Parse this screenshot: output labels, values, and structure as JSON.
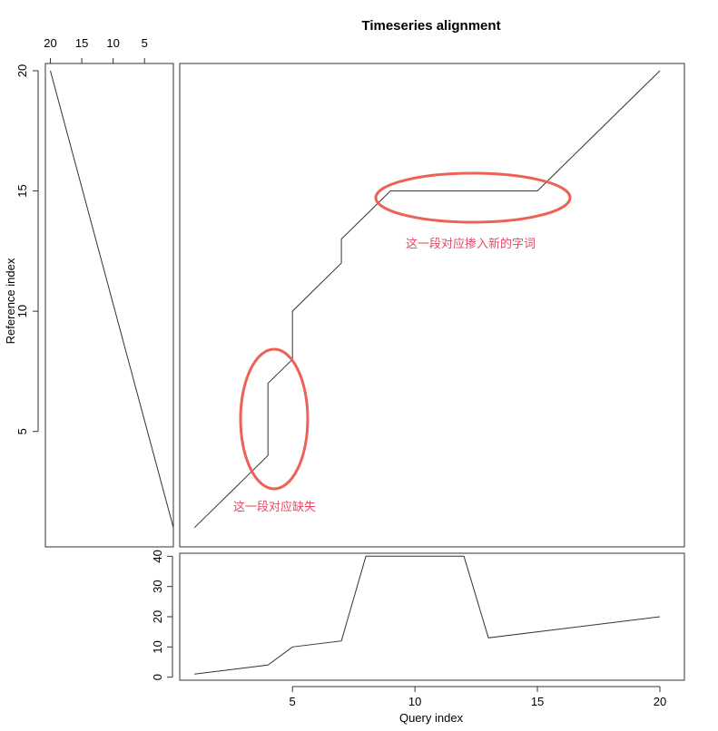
{
  "chart_data": {
    "type": "line",
    "title": "Timeseries alignment",
    "warping_path": {
      "xlabel": "Query index",
      "ylabel": "Reference index",
      "x": [
        1,
        2,
        3,
        4,
        4,
        5,
        5,
        6,
        7,
        7,
        8,
        9,
        10,
        11,
        12,
        13,
        14,
        15,
        16,
        17,
        18,
        19,
        20
      ],
      "y": [
        1,
        2,
        3,
        4,
        7,
        8,
        10,
        11,
        12,
        13,
        14,
        15,
        15,
        15,
        15,
        15,
        15,
        15,
        16,
        17,
        18,
        19,
        20
      ],
      "xlim": [
        0.4,
        21
      ],
      "ylim": [
        0.2,
        20.3
      ],
      "xticks": [],
      "yticks": [
        5,
        10,
        15,
        20
      ]
    },
    "reference_series": {
      "x": [
        20,
        0.4
      ],
      "y": [
        20,
        1
      ],
      "xlim": [
        0.4,
        20.8
      ],
      "xticks": [
        20,
        15,
        10,
        5
      ]
    },
    "query_series": {
      "x": [
        1,
        4,
        5,
        7,
        8,
        12,
        13,
        20
      ],
      "y": [
        1,
        4,
        10,
        12,
        40,
        40,
        13,
        20
      ],
      "ylim": [
        -1,
        41
      ],
      "yticks": [
        0,
        10,
        20,
        30,
        40
      ],
      "xticks": [
        5,
        10,
        15,
        20
      ]
    },
    "annotations": [
      {
        "text": "这一段对应缺失",
        "color": "#e24a64",
        "ellipse_color": "#ec6257"
      },
      {
        "text": "这一段对应掺入新的字词",
        "color": "#e24a64",
        "ellipse_color": "#ec6257"
      }
    ]
  }
}
